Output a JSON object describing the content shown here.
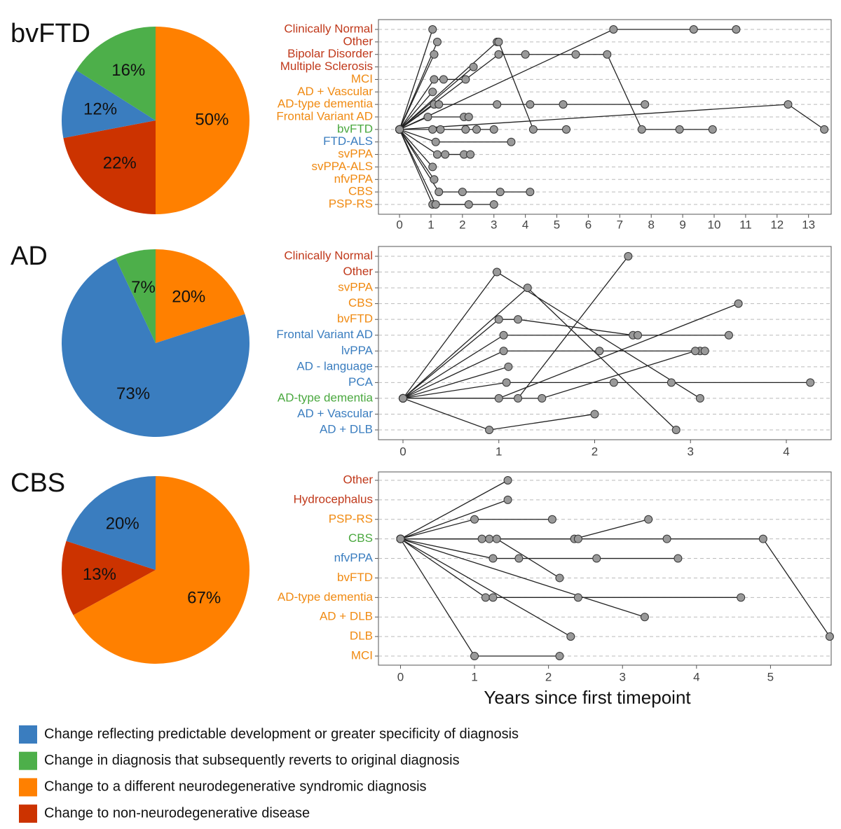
{
  "chart_data": [
    {
      "type": "pie",
      "title": "bvFTD",
      "values": [
        50,
        22,
        12,
        16
      ],
      "value_labels": [
        "50%",
        "22%",
        "12%",
        "16%"
      ],
      "colors": [
        "#ff8000",
        "#cc3300",
        "#3a7dbf",
        "#4daf4a"
      ]
    },
    {
      "type": "pie",
      "title": "AD",
      "values": [
        20,
        73,
        7
      ],
      "value_labels": [
        "20%",
        "73%",
        "7%"
      ],
      "colors": [
        "#ff8000",
        "#3a7dbf",
        "#4daf4a"
      ]
    },
    {
      "type": "pie",
      "title": "CBS",
      "values": [
        67,
        13,
        20
      ],
      "value_labels": [
        "67%",
        "13%",
        "20%"
      ],
      "colors": [
        "#ff8000",
        "#cc3300",
        "#3a7dbf"
      ]
    },
    {
      "type": "line",
      "categories": [
        "Clinically Normal",
        "Other",
        "Bipolar Disorder",
        "Multiple Sclerosis",
        "MCI",
        "AD + Vascular",
        "AD-type dementia",
        "Frontal Variant AD",
        "bvFTD",
        "FTD-ALS",
        "svPPA",
        "svPPA-ALS",
        "nfvPPA",
        "CBS",
        "PSP-RS"
      ],
      "label_colors": [
        "#c0391b",
        "#c0391b",
        "#c0391b",
        "#c0391b",
        "#f08a12",
        "#f08a12",
        "#f08a12",
        "#f08a12",
        "#4aa83f",
        "#3a7dbf",
        "#f08a12",
        "#f08a12",
        "#f08a12",
        "#f08a12",
        "#f08a12"
      ],
      "xlim": [
        -0.67,
        13.72
      ],
      "xticks": [
        0,
        1,
        2,
        3,
        4,
        5,
        6,
        7,
        8,
        9,
        10,
        11,
        12,
        13
      ],
      "trajectories": [
        {
          "x": [
            0,
            1.05
          ],
          "y": [
            "bvFTD",
            "Clinically Normal"
          ]
        },
        {
          "x": [
            0,
            6.8,
            9.35,
            10.7
          ],
          "y": [
            "bvFTD",
            "Clinically Normal",
            "Clinically Normal",
            "Clinically Normal"
          ]
        },
        {
          "x": [
            0,
            1.2
          ],
          "y": [
            "bvFTD",
            "Other"
          ]
        },
        {
          "x": [
            0,
            3.1,
            3.15,
            4.25,
            5.3
          ],
          "y": [
            "bvFTD",
            "Other",
            "Other",
            "bvFTD",
            "bvFTD"
          ]
        },
        {
          "x": [
            0,
            1.1
          ],
          "y": [
            "bvFTD",
            "Bipolar Disorder"
          ]
        },
        {
          "x": [
            0,
            3.15,
            4.0,
            5.6,
            6.6,
            7.7,
            8.9,
            9.95
          ],
          "y": [
            "bvFTD",
            "Bipolar Disorder",
            "Bipolar Disorder",
            "Bipolar Disorder",
            "Bipolar Disorder",
            "bvFTD",
            "bvFTD",
            "bvFTD"
          ]
        },
        {
          "x": [
            0,
            2.35
          ],
          "y": [
            "bvFTD",
            "Multiple Sclerosis"
          ]
        },
        {
          "x": [
            0,
            1.1,
            1.4,
            2.1
          ],
          "y": [
            "bvFTD",
            "MCI",
            "MCI",
            "MCI"
          ]
        },
        {
          "x": [
            0,
            1.05
          ],
          "y": [
            "bvFTD",
            "AD + Vascular"
          ]
        },
        {
          "x": [
            0,
            1.1,
            1.25,
            3.1,
            4.15,
            5.2,
            7.8
          ],
          "y": [
            "bvFTD",
            "AD-type dementia",
            "AD-type dementia",
            "AD-type dementia",
            "AD-type dementia",
            "AD-type dementia",
            "AD-type dementia"
          ]
        },
        {
          "x": [
            0,
            12.35,
            13.5
          ],
          "y": [
            "bvFTD",
            "AD-type dementia",
            "bvFTD"
          ]
        },
        {
          "x": [
            0,
            0.9,
            2.05,
            2.2
          ],
          "y": [
            "bvFTD",
            "Frontal Variant AD",
            "Frontal Variant AD",
            "Frontal Variant AD"
          ]
        },
        {
          "x": [
            0,
            1.05,
            1.3,
            2.1,
            2.45,
            3.0
          ],
          "y": [
            "bvFTD",
            "bvFTD",
            "bvFTD",
            "bvFTD",
            "bvFTD",
            "bvFTD"
          ]
        },
        {
          "x": [
            0,
            1.15,
            3.55
          ],
          "y": [
            "bvFTD",
            "FTD-ALS",
            "FTD-ALS"
          ]
        },
        {
          "x": [
            0,
            1.2,
            1.45,
            2.05,
            2.25
          ],
          "y": [
            "bvFTD",
            "svPPA",
            "svPPA",
            "svPPA",
            "svPPA"
          ]
        },
        {
          "x": [
            0,
            1.05
          ],
          "y": [
            "bvFTD",
            "svPPA-ALS"
          ]
        },
        {
          "x": [
            0,
            1.1
          ],
          "y": [
            "bvFTD",
            "nfvPPA"
          ]
        },
        {
          "x": [
            0,
            1.25,
            2.0,
            3.2,
            4.15
          ],
          "y": [
            "bvFTD",
            "CBS",
            "CBS",
            "CBS",
            "CBS"
          ]
        },
        {
          "x": [
            0,
            1.05,
            2.2
          ],
          "y": [
            "bvFTD",
            "PSP-RS",
            "PSP-RS"
          ]
        },
        {
          "x": [
            0,
            1.15,
            3.0
          ],
          "y": [
            "bvFTD",
            "PSP-RS",
            "PSP-RS"
          ]
        }
      ]
    },
    {
      "type": "line",
      "categories": [
        "Clinically Normal",
        "Other",
        "svPPA",
        "CBS",
        "bvFTD",
        "Frontal Variant AD",
        "lvPPA",
        "AD - language",
        "PCA",
        "AD-type dementia",
        "AD + Vascular",
        "AD + DLB"
      ],
      "label_colors": [
        "#c0391b",
        "#c0391b",
        "#f08a12",
        "#f08a12",
        "#f08a12",
        "#3a7dbf",
        "#3a7dbf",
        "#3a7dbf",
        "#3a7dbf",
        "#4aa83f",
        "#3a7dbf",
        "#3a7dbf"
      ],
      "xlim": [
        -0.256,
        4.468
      ],
      "xticks": [
        0,
        1,
        2,
        3,
        4
      ],
      "trajectories": [
        {
          "x": [
            0,
            1.2,
            2.35
          ],
          "y": [
            "AD-type dementia",
            "AD-type dementia",
            "Clinically Normal"
          ]
        },
        {
          "x": [
            0,
            0.98,
            3.1
          ],
          "y": [
            "AD-type dementia",
            "Other",
            "AD-type dementia"
          ]
        },
        {
          "x": [
            0,
            1.3,
            2.85
          ],
          "y": [
            "AD-type dementia",
            "svPPA",
            "AD + DLB"
          ]
        },
        {
          "x": [
            0,
            1.0,
            3.5
          ],
          "y": [
            "AD-type dementia",
            "AD-type dementia",
            "CBS"
          ]
        },
        {
          "x": [
            0,
            1.0,
            1.2,
            2.4
          ],
          "y": [
            "AD-type dementia",
            "bvFTD",
            "bvFTD",
            "Frontal Variant AD"
          ]
        },
        {
          "x": [
            0,
            1.05,
            2.45,
            3.4
          ],
          "y": [
            "AD-type dementia",
            "Frontal Variant AD",
            "Frontal Variant AD",
            "Frontal Variant AD"
          ]
        },
        {
          "x": [
            0,
            1.05,
            2.05,
            3.1,
            3.15
          ],
          "y": [
            "AD-type dementia",
            "lvPPA",
            "lvPPA",
            "lvPPA",
            "lvPPA"
          ]
        },
        {
          "x": [
            0,
            1.1
          ],
          "y": [
            "AD-type dementia",
            "AD - language"
          ]
        },
        {
          "x": [
            0,
            1.08,
            2.2,
            2.8,
            4.25
          ],
          "y": [
            "AD-type dementia",
            "PCA",
            "PCA",
            "PCA",
            "PCA"
          ]
        },
        {
          "x": [
            0,
            1.45,
            3.05
          ],
          "y": [
            "AD-type dementia",
            "AD-type dementia",
            "lvPPA"
          ]
        },
        {
          "x": [
            0,
            0.9,
            2.0
          ],
          "y": [
            "AD-type dementia",
            "AD + DLB",
            "AD + Vascular"
          ]
        }
      ]
    },
    {
      "type": "line",
      "xlabel": "Years since first timepoint",
      "categories": [
        "Other",
        "Hydrocephalus",
        "PSP-RS",
        "CBS",
        "nfvPPA",
        "bvFTD",
        "AD-type dementia",
        "AD + DLB",
        "DLB",
        "MCI"
      ],
      "label_colors": [
        "#c0391b",
        "#c0391b",
        "#f08a12",
        "#4aa83f",
        "#3a7dbf",
        "#f08a12",
        "#f08a12",
        "#f08a12",
        "#f08a12",
        "#f08a12"
      ],
      "xlim": [
        -0.298,
        5.82
      ],
      "xticks": [
        0,
        1,
        2,
        3,
        4,
        5
      ],
      "trajectories": [
        {
          "x": [
            0,
            1.45
          ],
          "y": [
            "CBS",
            "Other"
          ]
        },
        {
          "x": [
            0,
            1.45
          ],
          "y": [
            "CBS",
            "Hydrocephalus"
          ]
        },
        {
          "x": [
            0,
            1.0,
            2.05
          ],
          "y": [
            "CBS",
            "PSP-RS",
            "PSP-RS"
          ]
        },
        {
          "x": [
            0,
            1.1,
            2.35,
            3.35
          ],
          "y": [
            "CBS",
            "CBS",
            "CBS",
            "PSP-RS"
          ]
        },
        {
          "x": [
            0,
            1.2,
            2.4,
            3.6,
            4.9,
            5.8
          ],
          "y": [
            "CBS",
            "CBS",
            "CBS",
            "CBS",
            "CBS",
            "DLB"
          ]
        },
        {
          "x": [
            0,
            1.25,
            1.6,
            2.65,
            3.75
          ],
          "y": [
            "CBS",
            "nfvPPA",
            "nfvPPA",
            "nfvPPA",
            "nfvPPA"
          ]
        },
        {
          "x": [
            0,
            1.3,
            2.15
          ],
          "y": [
            "CBS",
            "CBS",
            "bvFTD"
          ]
        },
        {
          "x": [
            0,
            1.15,
            1.25,
            2.4,
            4.6
          ],
          "y": [
            "CBS",
            "AD-type dementia",
            "AD-type dementia",
            "AD-type dementia",
            "AD-type dementia"
          ]
        },
        {
          "x": [
            0,
            3.3
          ],
          "y": [
            "CBS",
            "AD + DLB"
          ]
        },
        {
          "x": [
            0,
            2.3
          ],
          "y": [
            "CBS",
            "DLB"
          ]
        },
        {
          "x": [
            0,
            1.0,
            2.15
          ],
          "y": [
            "CBS",
            "MCI",
            "MCI"
          ]
        }
      ]
    }
  ],
  "legend": [
    {
      "label": "Change reflecting predictable development or greater specificity of diagnosis",
      "color": "#3a7dbf"
    },
    {
      "label": "Change in diagnosis that subsequently reverts to original diagnosis",
      "color": "#4daf4a"
    },
    {
      "label": "Change to a different neurodegenerative syndromic diagnosis",
      "color": "#ff8000"
    },
    {
      "label": "Change to non-neurodegenerative disease",
      "color": "#cc3300"
    }
  ]
}
